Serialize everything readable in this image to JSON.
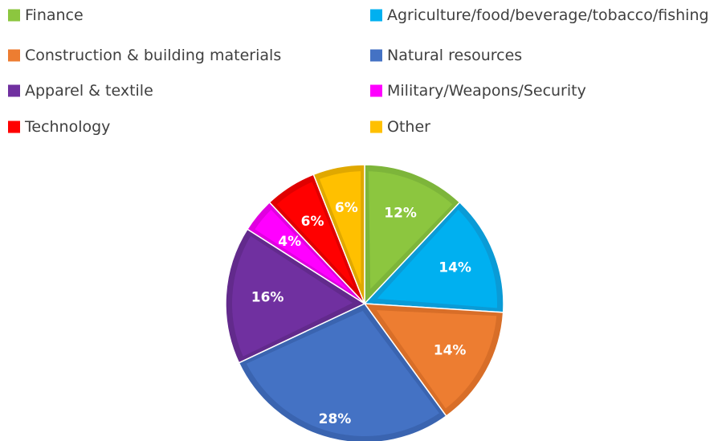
{
  "chart_data": {
    "type": "pie",
    "title": "",
    "legend_position": "top",
    "slices": [
      {
        "label": "Finance",
        "value": 12,
        "display": "12%",
        "color": "#8CC63F",
        "edge": "#7DB53A"
      },
      {
        "label": "Agriculture/food/beverage/tobacco/fishing",
        "value": 14,
        "display": "14%",
        "color": "#00B0F0",
        "edge": "#0A9BD6"
      },
      {
        "label": "Construction & building materials",
        "value": 14,
        "display": "14%",
        "color": "#ED7D31",
        "edge": "#D86E28"
      },
      {
        "label": "Natural resources",
        "value": 28,
        "display": "28%",
        "color": "#4472C4",
        "edge": "#3A64B0"
      },
      {
        "label": "Apparel & textile",
        "value": 16,
        "display": "16%",
        "color": "#7030A0",
        "edge": "#622A8C"
      },
      {
        "label": "Military/Weapons/Security",
        "value": 4,
        "display": "4%",
        "color": "#FF00FF",
        "edge": "#E000E0"
      },
      {
        "label": "Technology",
        "value": 6,
        "display": "6%",
        "color": "#FF0000",
        "edge": "#E00000"
      },
      {
        "label": "Other",
        "value": 6,
        "display": "6%",
        "color": "#FFC000",
        "edge": "#E0A800"
      }
    ]
  }
}
